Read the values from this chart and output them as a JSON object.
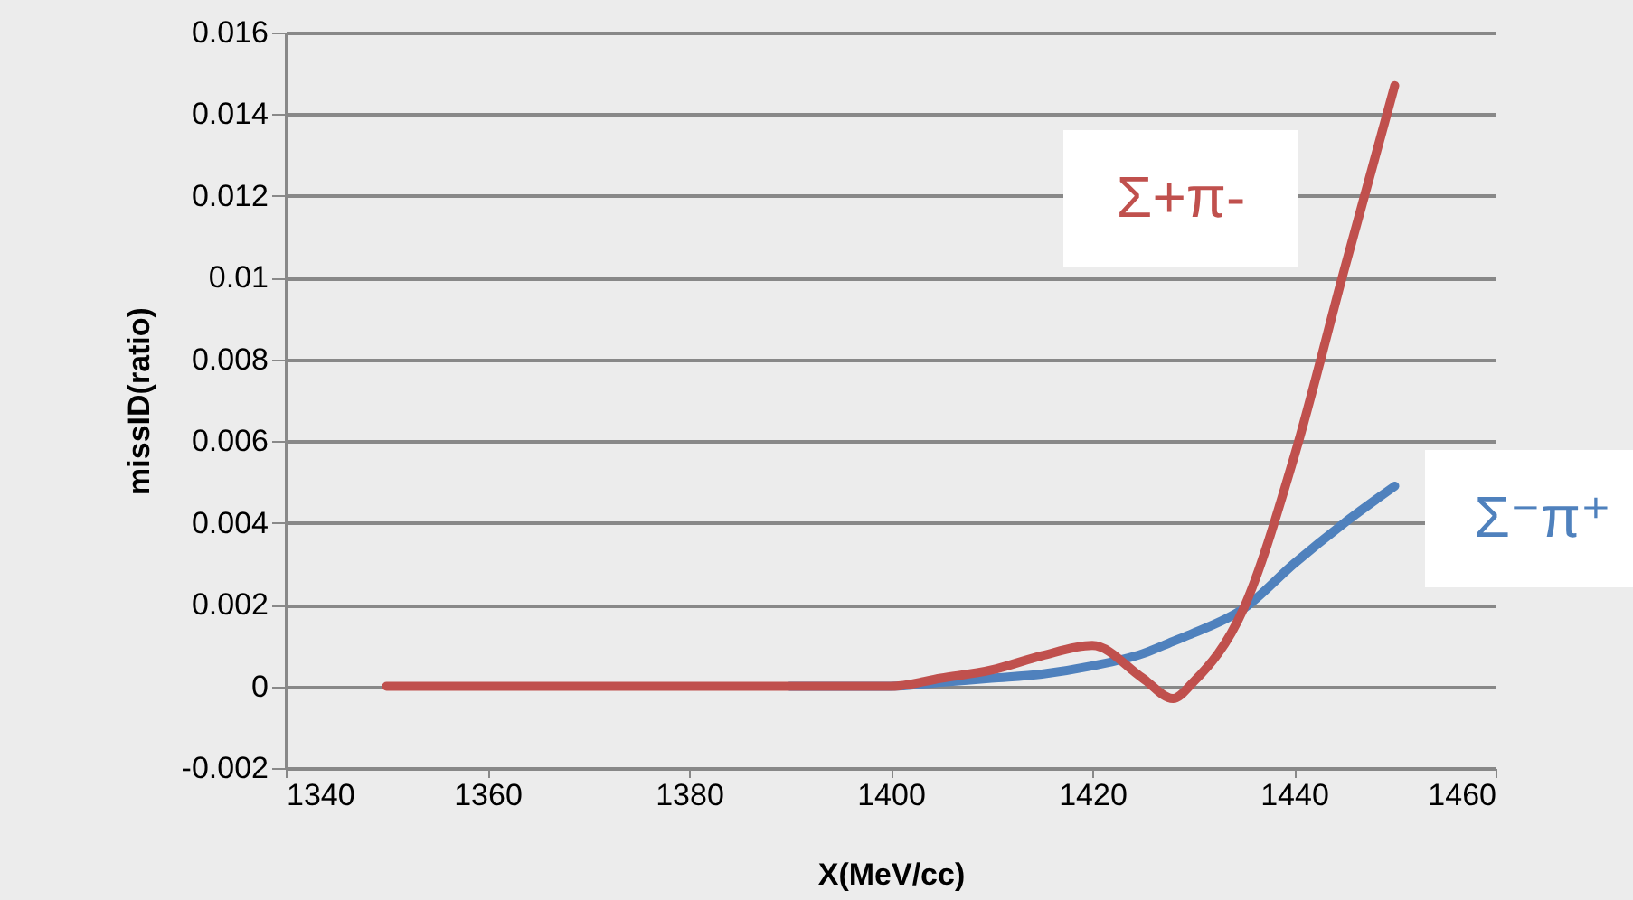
{
  "chart_data": {
    "type": "line",
    "xlabel": "X(MeV/cc)",
    "ylabel": "missID(ratio)",
    "x": [
      1350,
      1360,
      1370,
      1380,
      1390,
      1400,
      1405,
      1410,
      1415,
      1420,
      1425,
      1428,
      1430,
      1435,
      1440,
      1445,
      1450
    ],
    "series": [
      {
        "name": "Σ⁻π⁺",
        "color": "#4f81bd",
        "values": [
          null,
          null,
          null,
          null,
          0,
          0,
          0.0001,
          0.0002,
          0.0003,
          0.0005,
          0.0008,
          0.0011,
          0.0013,
          0.0019,
          0.003,
          0.004,
          0.0049
        ]
      },
      {
        "name": "Σ+π-",
        "color": "#c0504d",
        "values": [
          0,
          0,
          0,
          0,
          0,
          0,
          0.0002,
          0.0004,
          0.00075,
          0.001,
          0.0002,
          -0.0003,
          0.0001,
          0.0019,
          0.0056,
          0.0102,
          0.0147
        ]
      }
    ],
    "xlim": [
      1340,
      1460
    ],
    "xticks": [
      1340,
      1360,
      1380,
      1400,
      1420,
      1440,
      1460
    ],
    "ylim": [
      -0.002,
      0.016
    ],
    "yticks": [
      -0.002,
      0,
      0.002,
      0.004,
      0.006,
      0.008,
      0.01,
      0.012,
      0.014,
      0.016
    ],
    "grid": "y",
    "legend": false,
    "marker": "none",
    "line_style": "solid"
  }
}
